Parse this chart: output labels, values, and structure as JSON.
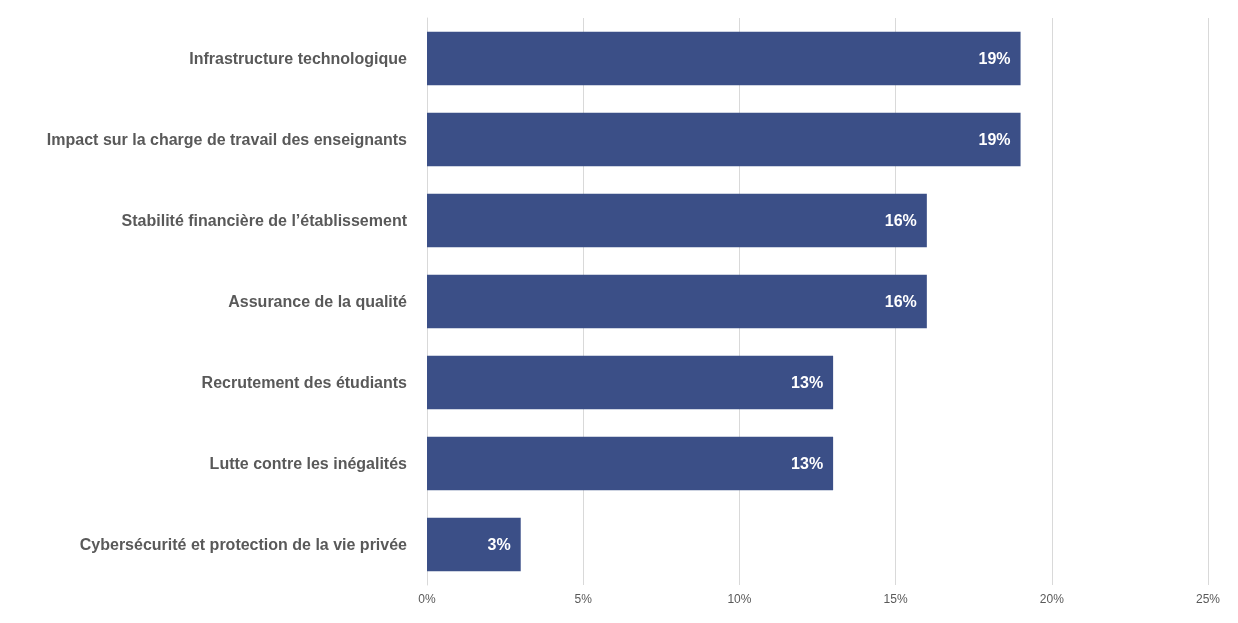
{
  "chart_data": {
    "type": "bar",
    "orientation": "horizontal",
    "categories": [
      "Infrastructure technologique",
      "Impact sur la charge de travail des enseignants",
      "Stabilité financière de l’établissement",
      "Assurance de la qualité",
      "Recrutement des étudiants",
      "Lutte contre les inégalités",
      "Cybersécurité et protection de la vie privée"
    ],
    "values": [
      19,
      19,
      16,
      16,
      13,
      13,
      3
    ],
    "color": "#3b4f87",
    "value_labels": [
      "19%",
      "19%",
      "16%",
      "16%",
      "13%",
      "13%",
      "3%"
    ],
    "xlim": [
      0,
      25
    ],
    "xticks": [
      {
        "value": 0,
        "label": "0%"
      },
      {
        "value": 5,
        "label": "5%"
      },
      {
        "value": 10,
        "label": "10%"
      },
      {
        "value": 15,
        "label": "15%"
      },
      {
        "value": 20,
        "label": "20%"
      },
      {
        "value": 25,
        "label": "25%"
      }
    ],
    "grid": "x"
  }
}
